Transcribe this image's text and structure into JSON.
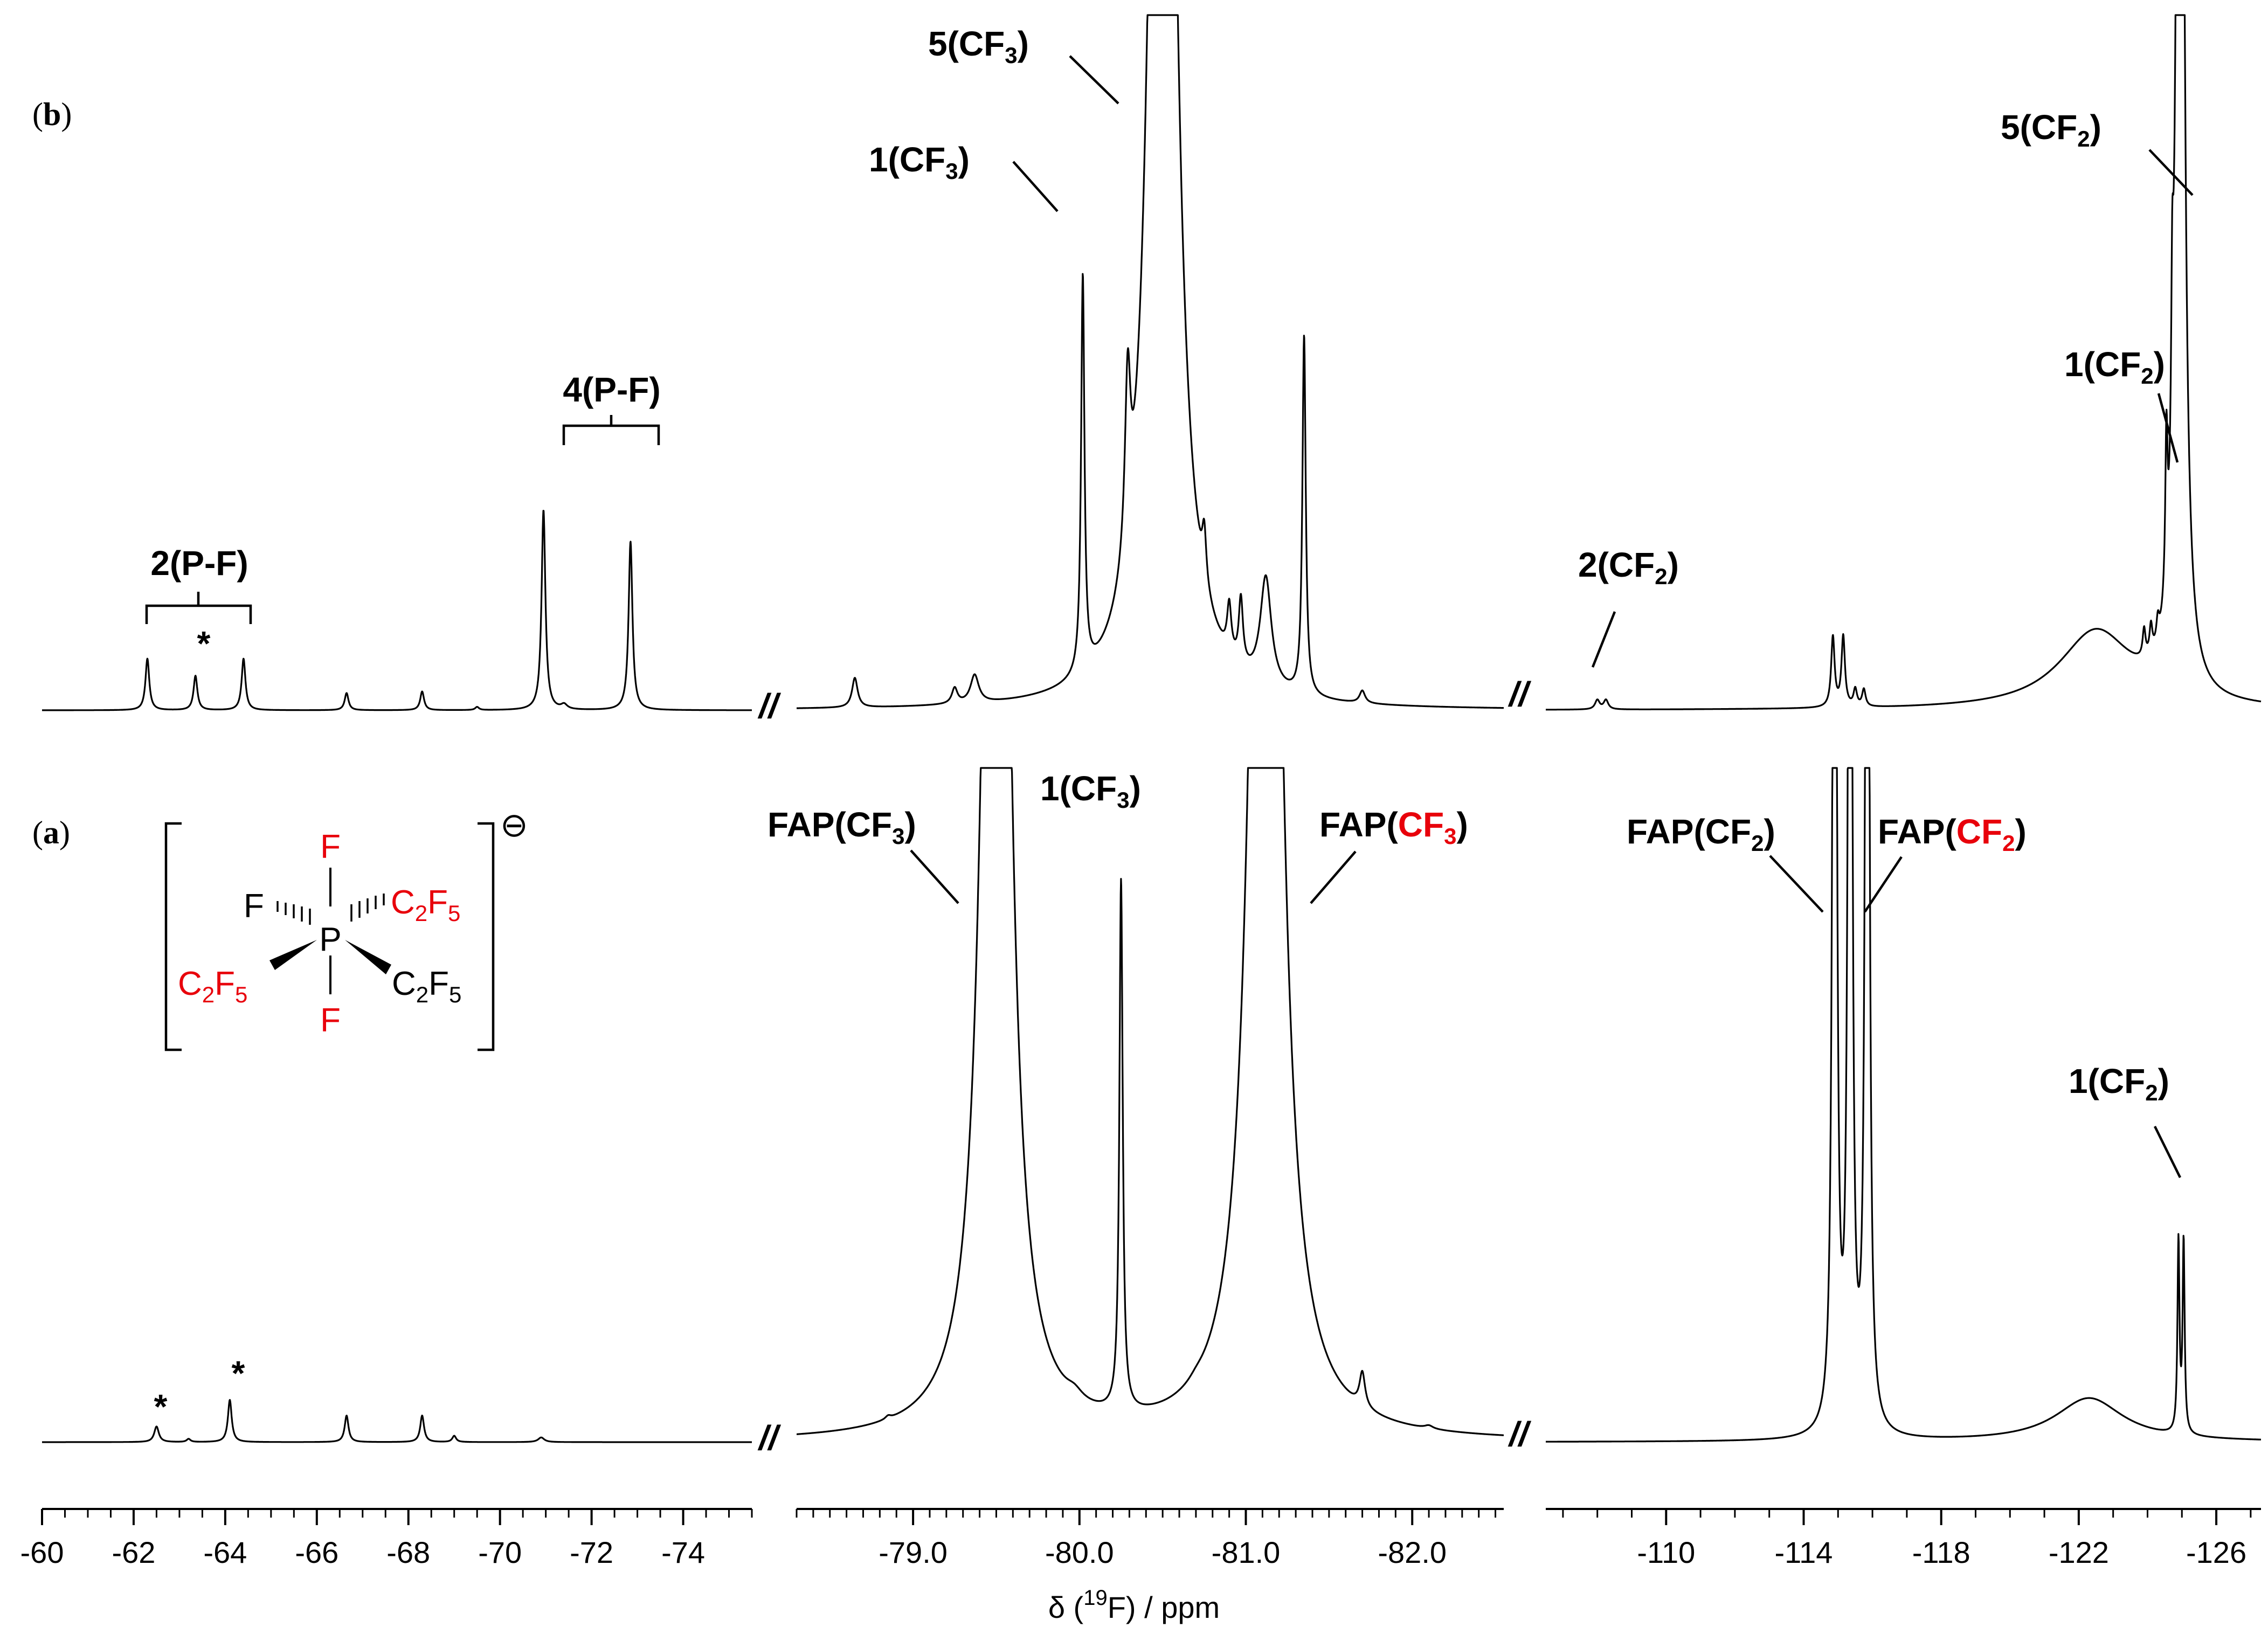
{
  "chart_data": {
    "type": "line",
    "xlabel_prefix": "δ (",
    "xlabel_sup": "19",
    "xlabel_suffix": "F) / ppm",
    "axis_segments": [
      {
        "range": [
          -60,
          -75.5
        ],
        "tick_labels": [
          "-60",
          "-62",
          "-64",
          "-66",
          "-68",
          "-70",
          "-72",
          "-74"
        ],
        "tick_values": [
          -60,
          -62,
          -64,
          -66,
          -68,
          -70,
          -72,
          -74
        ]
      },
      {
        "range": [
          -78.3,
          -82.55
        ],
        "tick_labels": [
          "-79.0",
          "-80.0",
          "-81.0",
          "-82.0"
        ],
        "tick_values": [
          -79.0,
          -80.0,
          -81.0,
          -82.0
        ]
      },
      {
        "range": [
          -106.5,
          -127.3
        ],
        "tick_labels": [
          "-110",
          "-114",
          "-118",
          "-122",
          "-126"
        ],
        "tick_values": [
          -110,
          -114,
          -118,
          -122,
          -126
        ]
      }
    ],
    "axis_break_label": "//",
    "panels": [
      {
        "panel_label_open": "(",
        "panel_label_letter": "b",
        "panel_label_close": ")",
        "peaks": [
          {
            "seg": 0,
            "x": -62.3,
            "h": 0.33,
            "w": 0.05
          },
          {
            "seg": 0,
            "x": -63.35,
            "h": 0.22,
            "w": 0.05
          },
          {
            "seg": 0,
            "x": -64.4,
            "h": 0.33,
            "w": 0.05
          },
          {
            "seg": 0,
            "x": -66.65,
            "h": 0.11,
            "w": 0.05
          },
          {
            "seg": 0,
            "x": -68.3,
            "h": 0.12,
            "w": 0.05
          },
          {
            "seg": 0,
            "x": -69.5,
            "h": 0.02,
            "w": 0.05
          },
          {
            "seg": 0,
            "x": -70.95,
            "h": 1.28,
            "w": 0.05
          },
          {
            "seg": 0,
            "x": -71.4,
            "h": 0.03,
            "w": 0.08
          },
          {
            "seg": 0,
            "x": -72.85,
            "h": 1.08,
            "w": 0.05
          },
          {
            "seg": 1,
            "x": -78.65,
            "h": 0.19,
            "w": 0.02
          },
          {
            "seg": 1,
            "x": -79.25,
            "h": 0.1,
            "w": 0.02
          },
          {
            "seg": 1,
            "x": -79.37,
            "h": 0.18,
            "w": 0.03
          },
          {
            "seg": 1,
            "x": -80.02,
            "h": 2.54,
            "w": 0.012
          },
          {
            "seg": 1,
            "x": -80.29,
            "h": 1.1,
            "w": 0.02
          },
          {
            "seg": 1,
            "x": -80.5,
            "h": 12.0,
            "w": 0.07
          },
          {
            "seg": 1,
            "x": -80.75,
            "h": 0.33,
            "w": 0.015
          },
          {
            "seg": 1,
            "x": -80.9,
            "h": 0.31,
            "w": 0.015
          },
          {
            "seg": 1,
            "x": -80.97,
            "h": 0.42,
            "w": 0.015
          },
          {
            "seg": 1,
            "x": -81.12,
            "h": 0.7,
            "w": 0.04
          },
          {
            "seg": 1,
            "x": -81.35,
            "h": 2.3,
            "w": 0.012
          },
          {
            "seg": 1,
            "x": -81.7,
            "h": 0.08,
            "w": 0.02
          },
          {
            "seg": 2,
            "x": -108.0,
            "h": 0.06,
            "w": 0.08
          },
          {
            "seg": 2,
            "x": -108.25,
            "h": 0.06,
            "w": 0.08
          },
          {
            "seg": 2,
            "x": -114.85,
            "h": 0.45,
            "w": 0.06
          },
          {
            "seg": 2,
            "x": -115.15,
            "h": 0.45,
            "w": 0.06
          },
          {
            "seg": 2,
            "x": -115.5,
            "h": 0.11,
            "w": 0.06
          },
          {
            "seg": 2,
            "x": -115.75,
            "h": 0.11,
            "w": 0.06
          },
          {
            "seg": 2,
            "x": -122.5,
            "h": 0.5,
            "w": 1.3
          },
          {
            "seg": 2,
            "x": -123.9,
            "h": 0.18,
            "w": 0.05
          },
          {
            "seg": 2,
            "x": -124.1,
            "h": 0.18,
            "w": 0.05
          },
          {
            "seg": 2,
            "x": -124.3,
            "h": 0.14,
            "w": 0.05
          },
          {
            "seg": 2,
            "x": -124.55,
            "h": 1.0,
            "w": 0.04
          },
          {
            "seg": 2,
            "x": -124.72,
            "h": 1.14,
            "w": 0.04
          },
          {
            "seg": 2,
            "x": -124.95,
            "h": 12.0,
            "w": 0.1
          }
        ],
        "annotations": [
          "2(P-F)",
          "*",
          "4(P-F)",
          "1(CF3)",
          "5(CF3)",
          "2(CF2)",
          "1(CF2)",
          "5(CF2)"
        ]
      },
      {
        "panel_label_open": "(",
        "panel_label_letter": "a",
        "panel_label_close": ")",
        "peaks": [
          {
            "seg": 0,
            "x": -62.5,
            "h": 0.1,
            "w": 0.06
          },
          {
            "seg": 0,
            "x": -63.2,
            "h": 0.02,
            "w": 0.05
          },
          {
            "seg": 0,
            "x": -64.1,
            "h": 0.27,
            "w": 0.05
          },
          {
            "seg": 0,
            "x": -66.65,
            "h": 0.17,
            "w": 0.05
          },
          {
            "seg": 0,
            "x": -68.3,
            "h": 0.17,
            "w": 0.05
          },
          {
            "seg": 0,
            "x": -69.0,
            "h": 0.04,
            "w": 0.05
          },
          {
            "seg": 0,
            "x": -70.9,
            "h": 0.03,
            "w": 0.08
          },
          {
            "seg": 1,
            "x": -78.85,
            "h": 0.02,
            "w": 0.02
          },
          {
            "seg": 1,
            "x": -79.5,
            "h": 12.0,
            "w": 0.07
          },
          {
            "seg": 1,
            "x": -79.97,
            "h": 0.05,
            "w": 0.06
          },
          {
            "seg": 1,
            "x": -80.25,
            "h": 3.4,
            "w": 0.012
          },
          {
            "seg": 1,
            "x": -80.7,
            "h": 0.02,
            "w": 0.05
          },
          {
            "seg": 1,
            "x": -81.12,
            "h": 12.0,
            "w": 0.08
          },
          {
            "seg": 1,
            "x": -81.7,
            "h": 0.22,
            "w": 0.02
          },
          {
            "seg": 1,
            "x": -82.1,
            "h": 0.02,
            "w": 0.03
          },
          {
            "seg": 2,
            "x": -114.9,
            "h": 12.0,
            "w": 0.05
          },
          {
            "seg": 2,
            "x": -115.35,
            "h": 12.0,
            "w": 0.05
          },
          {
            "seg": 2,
            "x": -115.85,
            "h": 12.0,
            "w": 0.05
          },
          {
            "seg": 2,
            "x": -122.3,
            "h": 0.28,
            "w": 1.2
          },
          {
            "seg": 2,
            "x": -124.9,
            "h": 1.22,
            "w": 0.035
          },
          {
            "seg": 2,
            "x": -125.05,
            "h": 1.22,
            "w": 0.035
          }
        ],
        "annotations": [
          "*",
          "*",
          "FAP(CF3)",
          "1(CF3)",
          "FAP(CF3)",
          "FAP(CF2)",
          "FAP(CF2)",
          "1(CF2)"
        ]
      }
    ]
  },
  "labels": {
    "two_pf": "2(P-F)",
    "four_pf": "4(P-F)",
    "star": "*",
    "n1": "1",
    "n2": "2",
    "n5": "5",
    "fap": "FAP",
    "open": "(",
    "close": ")",
    "cf": "CF",
    "sub2": "2",
    "sub3": "3",
    "break": "//"
  },
  "structure": {
    "charge": "⊖",
    "F_top": "F",
    "F_bottom": "F",
    "F_left": "F",
    "P": "P",
    "C": "C",
    "F": "F",
    "sub2": "2",
    "sub5": "5"
  },
  "colors": {
    "highlight": "#e8000b",
    "ink": "#000000"
  }
}
